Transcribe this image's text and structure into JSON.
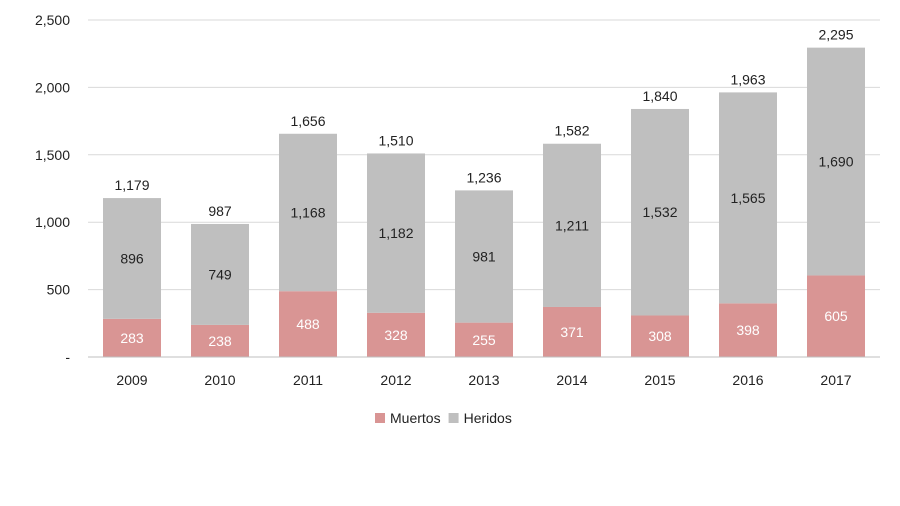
{
  "chart_data": {
    "type": "bar",
    "stacked": true,
    "title": "",
    "xlabel": "",
    "ylabel": "",
    "categories": [
      "2009",
      "2010",
      "2011",
      "2012",
      "2013",
      "2014",
      "2015",
      "2016",
      "2017"
    ],
    "series": [
      {
        "name": "Muertos",
        "color": "#d99594",
        "values": [
          283,
          238,
          488,
          328,
          255,
          371,
          308,
          398,
          605
        ]
      },
      {
        "name": "Heridos",
        "color": "#bfbfbf",
        "values": [
          896,
          749,
          1168,
          1182,
          981,
          1211,
          1532,
          1565,
          1690
        ]
      }
    ],
    "totals": [
      1179,
      987,
      1656,
      1510,
      1236,
      1582,
      1840,
      1963,
      2295
    ],
    "ylim": [
      0,
      2500
    ],
    "yticks": [
      0,
      500,
      1000,
      1500,
      2000,
      2500
    ],
    "ytick_labels": [
      "-",
      "500",
      "1,000",
      "1,500",
      "2,000",
      "2,500"
    ],
    "grid": true,
    "legend_position": "bottom"
  }
}
